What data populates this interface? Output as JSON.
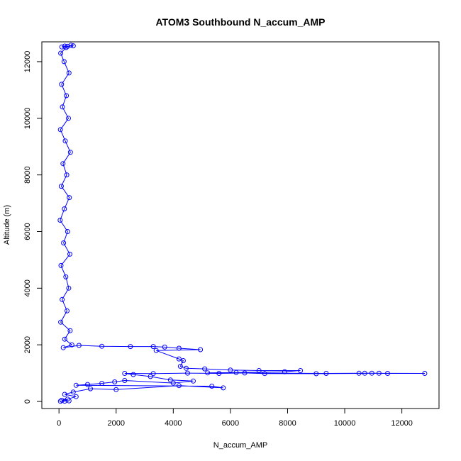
{
  "chart_data": {
    "type": "scatter",
    "title": "ATOM3 Southbound N_accum_AMP",
    "xlabel": "N_accum_AMP",
    "ylabel": "Altitude (m)",
    "xlim": [
      -600,
      13300
    ],
    "ylim": [
      -250,
      12700
    ],
    "x_ticks": [
      0,
      2000,
      4000,
      6000,
      8000,
      10000,
      12000
    ],
    "y_ticks": [
      0,
      2000,
      4000,
      6000,
      8000,
      10000,
      12000
    ],
    "grid": false,
    "legend": "none",
    "marker": "open-circle",
    "color": "#0000ff",
    "series": [
      {
        "points": [
          [
            200,
            12550
          ],
          [
            100,
            12520
          ],
          [
            300,
            12540
          ],
          [
            500,
            12560
          ],
          [
            420,
            12580
          ],
          [
            250,
            12500
          ],
          [
            60,
            12300
          ],
          [
            180,
            12000
          ],
          [
            350,
            11600
          ],
          [
            90,
            11200
          ],
          [
            260,
            10800
          ],
          [
            120,
            10400
          ],
          [
            330,
            10000
          ],
          [
            50,
            9600
          ],
          [
            220,
            9200
          ],
          [
            400,
            8800
          ],
          [
            140,
            8400
          ],
          [
            270,
            8000
          ],
          [
            80,
            7600
          ],
          [
            360,
            7200
          ],
          [
            190,
            6800
          ],
          [
            40,
            6400
          ],
          [
            300,
            6000
          ],
          [
            160,
            5600
          ],
          [
            380,
            5200
          ],
          [
            70,
            4800
          ],
          [
            240,
            4400
          ],
          [
            340,
            4000
          ],
          [
            110,
            3600
          ],
          [
            280,
            3200
          ],
          [
            60,
            2800
          ],
          [
            390,
            2500
          ],
          [
            200,
            2200
          ],
          [
            450,
            2000
          ],
          [
            150,
            1900
          ],
          [
            700,
            1980
          ],
          [
            1500,
            1950
          ],
          [
            2500,
            1940
          ],
          [
            3300,
            1940
          ],
          [
            3700,
            1920
          ],
          [
            4200,
            1880
          ],
          [
            4950,
            1830
          ],
          [
            3400,
            1800
          ],
          [
            4200,
            1500
          ],
          [
            4350,
            1440
          ],
          [
            4250,
            1240
          ],
          [
            4450,
            1170
          ],
          [
            5100,
            1150
          ],
          [
            6000,
            1110
          ],
          [
            7000,
            1090
          ],
          [
            8450,
            1090
          ],
          [
            7900,
            1050
          ],
          [
            6200,
            1020
          ],
          [
            5200,
            1010
          ],
          [
            9350,
            990
          ],
          [
            10500,
            995
          ],
          [
            11500,
            990
          ],
          [
            12800,
            990
          ],
          [
            10700,
            995
          ],
          [
            10950,
            998
          ],
          [
            11200,
            995
          ],
          [
            9000,
            980
          ],
          [
            7200,
            985
          ],
          [
            6500,
            1005
          ],
          [
            5600,
            990
          ],
          [
            4500,
            1000
          ],
          [
            3300,
            985
          ],
          [
            2300,
            990
          ],
          [
            2600,
            950
          ],
          [
            3200,
            880
          ],
          [
            3900,
            760
          ],
          [
            4700,
            720
          ],
          [
            4000,
            650
          ],
          [
            2300,
            740
          ],
          [
            1950,
            690
          ],
          [
            1500,
            640
          ],
          [
            1000,
            600
          ],
          [
            600,
            570
          ],
          [
            5350,
            540
          ],
          [
            5750,
            480
          ],
          [
            4200,
            560
          ],
          [
            2000,
            420
          ],
          [
            1100,
            450
          ],
          [
            500,
            330
          ],
          [
            200,
            250
          ],
          [
            600,
            170
          ],
          [
            300,
            80
          ],
          [
            100,
            40
          ],
          [
            350,
            20
          ],
          [
            200,
            10
          ],
          [
            50,
            5
          ]
        ]
      }
    ]
  }
}
